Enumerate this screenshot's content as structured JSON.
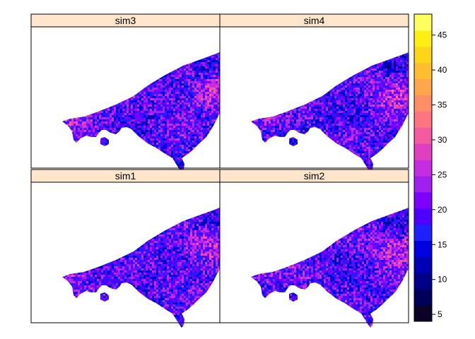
{
  "panels": [
    {
      "name": "sim3",
      "row": 0,
      "col": 0,
      "variant": 3
    },
    {
      "name": "sim4",
      "row": 0,
      "col": 1,
      "variant": 4
    },
    {
      "name": "sim1",
      "row": 1,
      "col": 0,
      "variant": 1
    },
    {
      "name": "sim2",
      "row": 1,
      "col": 1,
      "variant": 2
    }
  ],
  "colorkey": {
    "min": 4,
    "max": 48,
    "ticks": [
      "5",
      "10",
      "15",
      "20",
      "25",
      "30",
      "35",
      "40",
      "45"
    ],
    "tick_values": [
      5,
      10,
      15,
      20,
      25,
      30,
      35,
      40,
      45
    ],
    "colors": [
      "#0c0126",
      "#00005a",
      "#000089",
      "#0000b4",
      "#0000e0",
      "#2020ff",
      "#4e00ff",
      "#8000ff",
      "#a120f0",
      "#c42ee0",
      "#e040c0",
      "#f45aa0",
      "#fe7482",
      "#ff8e66",
      "#ffa64c",
      "#ffbe32",
      "#ffd51a",
      "#ffee14",
      "#ffff60"
    ]
  },
  "strip_color": "#ffe5cc",
  "chart_data": {
    "type": "heatmap",
    "panels": [
      "sim3",
      "sim4",
      "sim1",
      "sim2"
    ],
    "layout": "2x2",
    "value_range": [
      4,
      48
    ],
    "colorkey_ticks": [
      5,
      10,
      15,
      20,
      25,
      30,
      35,
      40,
      45
    ],
    "legend": "right"
  }
}
